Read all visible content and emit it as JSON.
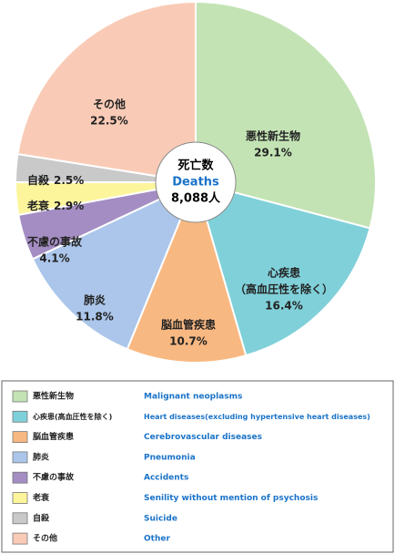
{
  "chart_data": {
    "type": "pie",
    "categories": [
      "悪性新生物",
      "心疾患(高血圧性を除く)",
      "脳血管疾患",
      "肺炎",
      "不慮の事故",
      "老衰",
      "自殺",
      "その他"
    ],
    "english": [
      "Malignant neoplasms",
      "Heart diseases(excluding hypertensive heart diseases)",
      "Cerebrovascular diseases",
      "Pneumonia",
      "Accidents",
      "Senility without mention of psychosis",
      "Suicide",
      "Other"
    ],
    "slice_labels": [
      [
        "悪性新生物"
      ],
      [
        "心疾患",
        "（高血圧性を除く）"
      ],
      [
        "脳血管疾患"
      ],
      [
        "肺炎"
      ],
      [
        "不慮の事故"
      ],
      [
        "老衰"
      ],
      [
        "自殺"
      ],
      [
        "その他"
      ]
    ],
    "values": [
      29.1,
      16.4,
      10.7,
      11.8,
      4.1,
      2.9,
      2.5,
      22.5
    ],
    "value_labels": [
      "29.1%",
      "16.4%",
      "10.7%",
      "11.8%",
      "4.1%",
      "2.9%",
      "2.5%",
      "22.5%"
    ],
    "colors": [
      "#c3e3b4",
      "#80d0d9",
      "#f8b881",
      "#abc6ea",
      "#a38dc2",
      "#fdf59c",
      "#c9c9c9",
      "#f9cbb6"
    ],
    "center_label": [
      "死亡数",
      "Deaths",
      "8,088人"
    ]
  }
}
